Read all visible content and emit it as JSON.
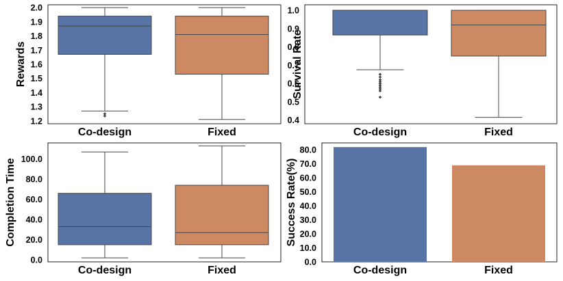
{
  "colors": {
    "codesign": "#5874a6",
    "fixed": "#cd8962",
    "line": "#444444"
  },
  "chart_data": [
    {
      "type": "box",
      "ylabel": "Rewards",
      "ylim": [
        1.18,
        2.02
      ],
      "yticks": [
        1.2,
        1.3,
        1.4,
        1.5,
        1.6,
        1.7,
        1.8,
        1.9,
        2.0
      ],
      "tick_labels": [
        "1.2",
        "1.3",
        "1.4",
        "1.5",
        "1.6",
        "1.7",
        "1.8",
        "1.9",
        "2.0"
      ],
      "categories": [
        "Co-design",
        "Fixed"
      ],
      "boxes": [
        {
          "whislo": 1.27,
          "q1": 1.67,
          "med": 1.87,
          "q3": 1.94,
          "whishi": 2.0,
          "fliers": [
            1.25,
            1.235
          ]
        },
        {
          "whislo": 1.21,
          "q1": 1.53,
          "med": 1.81,
          "q3": 1.94,
          "whishi": 2.0,
          "fliers": []
        }
      ]
    },
    {
      "type": "box",
      "ylabel": "Survival Rate",
      "ylim": [
        0.38,
        1.03
      ],
      "yticks": [
        0.4,
        0.5,
        0.6,
        0.7,
        0.8,
        0.9,
        1.0
      ],
      "tick_labels": [
        "0.4",
        "0.5",
        "0.6",
        "0.7",
        "0.8",
        "0.9",
        "1.0"
      ],
      "categories": [
        "Co-design",
        "Fixed"
      ],
      "boxes": [
        {
          "whislo": 0.675,
          "q1": 0.865,
          "med": 1.0,
          "q3": 1.0,
          "whishi": 1.0,
          "fliers": [
            0.65,
            0.635,
            0.62,
            0.61,
            0.6,
            0.59,
            0.58,
            0.57,
            0.56,
            0.525
          ]
        },
        {
          "whislo": 0.415,
          "q1": 0.75,
          "med": 0.92,
          "q3": 1.0,
          "whishi": 1.0,
          "fliers": []
        }
      ]
    },
    {
      "type": "box",
      "ylabel": "Completion Time",
      "ylim": [
        -2,
        116
      ],
      "yticks": [
        0,
        20,
        40,
        60,
        80,
        100
      ],
      "tick_labels": [
        "0.0",
        "20.0",
        "40.0",
        "60.0",
        "80.0",
        "100.0"
      ],
      "categories": [
        "Co-design",
        "Fixed"
      ],
      "boxes": [
        {
          "whislo": 2,
          "q1": 15,
          "med": 33,
          "q3": 66,
          "whishi": 107,
          "fliers": []
        },
        {
          "whislo": 2,
          "q1": 15,
          "med": 27,
          "q3": 74,
          "whishi": 113,
          "fliers": []
        }
      ]
    },
    {
      "type": "bar",
      "ylabel": "Success Rate(%)",
      "ylim": [
        0,
        85
      ],
      "yticks": [
        0,
        10,
        20,
        30,
        40,
        50,
        60,
        70,
        80
      ],
      "tick_labels": [
        "0.0",
        "10.0",
        "20.0",
        "30.0",
        "40.0",
        "50.0",
        "60.0",
        "70.0",
        "80.0"
      ],
      "categories": [
        "Co-design",
        "Fixed"
      ],
      "values": [
        82,
        69
      ]
    }
  ]
}
